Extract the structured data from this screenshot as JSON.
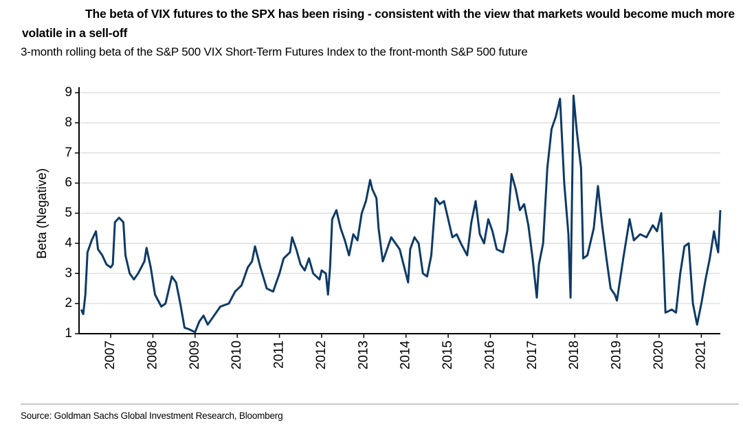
{
  "chart_data": {
    "type": "line",
    "title": "The beta of VIX futures to the SPX has been rising - consistent with the view that markets would become much more volatile in a sell-off",
    "subtitle": "3-month rolling beta of the S&P 500 VIX Short-Term Futures Index to the front-month S&P 500 future",
    "y_label": "Beta (Negative)",
    "source": "Source: Goldman Sachs Global Investment Research, Bloomberg",
    "x": [
      2006.3,
      2006.35,
      2006.4,
      2006.45,
      2006.55,
      2006.65,
      2006.7,
      2006.8,
      2006.9,
      2007.0,
      2007.05,
      2007.1,
      2007.2,
      2007.3,
      2007.35,
      2007.45,
      2007.55,
      2007.65,
      2007.8,
      2007.85,
      2007.95,
      2008.05,
      2008.2,
      2008.3,
      2008.45,
      2008.55,
      2008.65,
      2008.75,
      2008.85,
      2009.0,
      2009.1,
      2009.2,
      2009.3,
      2009.45,
      2009.6,
      2009.8,
      2009.95,
      2010.1,
      2010.25,
      2010.35,
      2010.42,
      2010.55,
      2010.7,
      2010.85,
      2011.0,
      2011.1,
      2011.25,
      2011.3,
      2011.4,
      2011.5,
      2011.6,
      2011.7,
      2011.8,
      2011.95,
      2012.0,
      2012.1,
      2012.15,
      2012.2,
      2012.25,
      2012.35,
      2012.45,
      2012.55,
      2012.65,
      2012.75,
      2012.85,
      2012.95,
      2013.05,
      2013.15,
      2013.2,
      2013.3,
      2013.35,
      2013.45,
      2013.55,
      2013.65,
      2013.75,
      2013.85,
      2014.05,
      2014.1,
      2014.2,
      2014.3,
      2014.4,
      2014.5,
      2014.6,
      2014.7,
      2014.8,
      2014.9,
      2015.0,
      2015.1,
      2015.2,
      2015.3,
      2015.45,
      2015.55,
      2015.65,
      2015.75,
      2015.85,
      2015.95,
      2016.05,
      2016.15,
      2016.3,
      2016.4,
      2016.5,
      2016.6,
      2016.7,
      2016.8,
      2016.9,
      2017.0,
      2017.1,
      2017.15,
      2017.25,
      2017.35,
      2017.45,
      2017.55,
      2017.65,
      2017.75,
      2017.85,
      2017.9,
      2017.97,
      2018.05,
      2018.15,
      2018.2,
      2018.3,
      2018.45,
      2018.55,
      2018.65,
      2018.75,
      2018.85,
      2018.95,
      2019.0,
      2019.15,
      2019.3,
      2019.4,
      2019.55,
      2019.7,
      2019.85,
      2019.95,
      2020.05,
      2020.1,
      2020.15,
      2020.3,
      2020.4,
      2020.5,
      2020.6,
      2020.7,
      2020.8,
      2020.9,
      2021.0,
      2021.1,
      2021.2,
      2021.3,
      2021.35,
      2021.4,
      2021.45
    ],
    "series": [
      {
        "color": "#0d3a66",
        "values": [
          1.8,
          1.65,
          2.3,
          3.7,
          4.1,
          4.4,
          3.8,
          3.6,
          3.3,
          3.2,
          3.3,
          4.7,
          4.85,
          4.7,
          3.6,
          3.0,
          2.8,
          3.0,
          3.4,
          3.85,
          3.2,
          2.3,
          1.9,
          2.0,
          2.9,
          2.7,
          2.0,
          1.2,
          1.15,
          1.05,
          1.4,
          1.6,
          1.3,
          1.6,
          1.9,
          2.0,
          2.4,
          2.6,
          3.2,
          3.4,
          3.9,
          3.2,
          2.5,
          2.4,
          3.0,
          3.5,
          3.7,
          4.2,
          3.8,
          3.3,
          3.1,
          3.5,
          3.0,
          2.8,
          3.1,
          3.0,
          2.3,
          3.2,
          4.8,
          5.1,
          4.5,
          4.1,
          3.6,
          4.3,
          4.1,
          5.0,
          5.4,
          6.1,
          5.8,
          5.5,
          4.5,
          3.4,
          3.8,
          4.2,
          4.0,
          3.8,
          2.7,
          3.8,
          4.2,
          4.0,
          3.0,
          2.9,
          3.6,
          5.5,
          5.3,
          5.4,
          4.8,
          4.2,
          4.3,
          4.0,
          3.6,
          4.7,
          5.4,
          4.3,
          4.0,
          4.8,
          4.4,
          3.8,
          3.7,
          4.4,
          6.3,
          5.8,
          5.1,
          5.3,
          4.6,
          3.5,
          2.2,
          3.3,
          4.0,
          6.5,
          7.8,
          8.2,
          8.8,
          6.0,
          4.3,
          2.2,
          8.9,
          7.7,
          6.5,
          3.5,
          3.6,
          4.5,
          5.9,
          4.6,
          3.5,
          2.5,
          2.3,
          2.1,
          3.5,
          4.8,
          4.1,
          4.3,
          4.2,
          4.6,
          4.4,
          5.0,
          3.5,
          1.7,
          1.8,
          1.7,
          3.0,
          3.9,
          4.0,
          2.0,
          1.3,
          2.0,
          2.8,
          3.5,
          4.4,
          4.0,
          3.7,
          5.1
        ]
      }
    ],
    "xlim": [
      2006.25,
      2021.45
    ],
    "xticks": [
      2007,
      2008,
      2009,
      2010,
      2011,
      2012,
      2013,
      2014,
      2015,
      2016,
      2017,
      2018,
      2019,
      2020,
      2021
    ],
    "ylim": [
      1,
      9
    ],
    "yticks": [
      1,
      2,
      3,
      4,
      5,
      6,
      7,
      8,
      9
    ],
    "grid": true
  }
}
